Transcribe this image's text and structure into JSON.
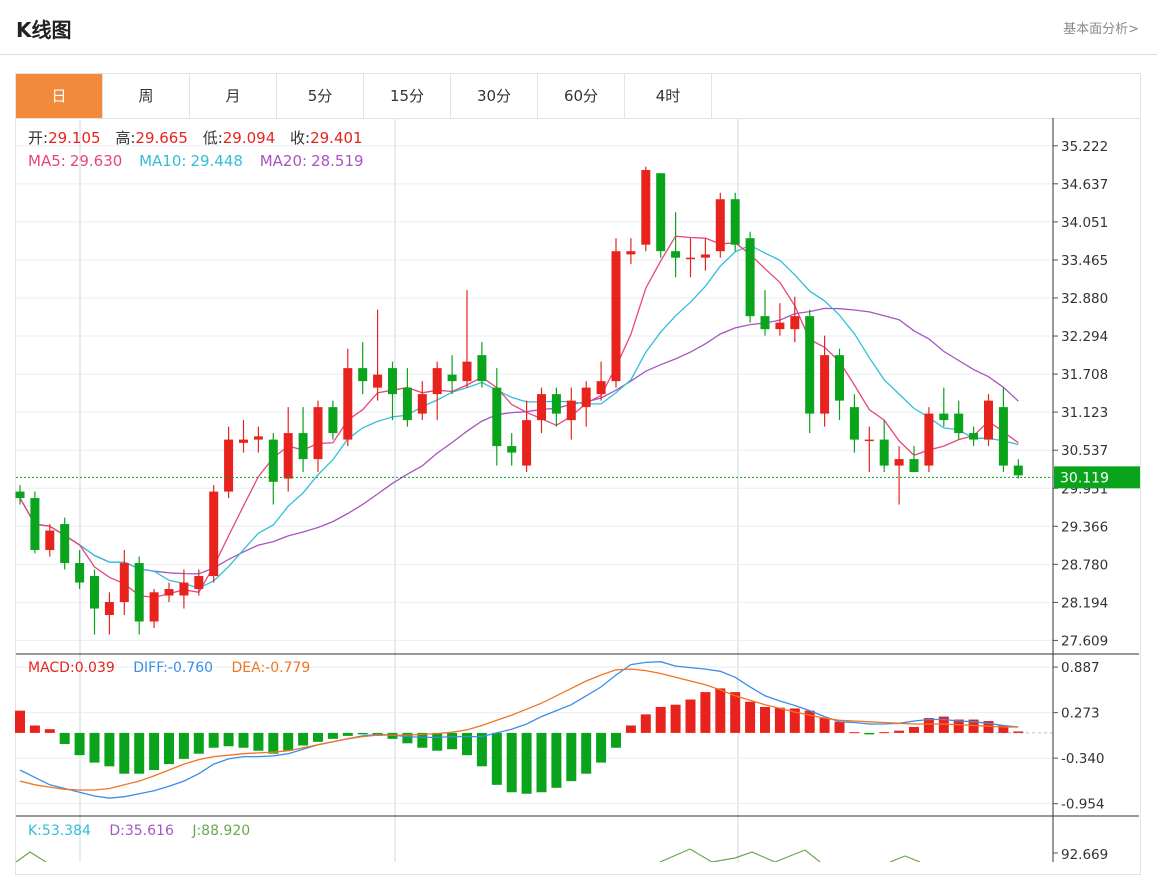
{
  "header": {
    "title": "K线图",
    "link": "基本面分析>"
  },
  "tabs": [
    {
      "label": "日",
      "active": true
    },
    {
      "label": "周",
      "active": false
    },
    {
      "label": "月",
      "active": false
    },
    {
      "label": "5分",
      "active": false
    },
    {
      "label": "15分",
      "active": false
    },
    {
      "label": "30分",
      "active": false
    },
    {
      "label": "60分",
      "active": false
    },
    {
      "label": "4时",
      "active": false
    }
  ],
  "colors": {
    "up": "#e8231d",
    "down": "#0aa31c",
    "ma5": "#e8467a",
    "ma10": "#31bfd8",
    "ma20": "#a855c2",
    "diff": "#3a8ee6",
    "dea": "#f07522",
    "accent": "#f28a3b"
  },
  "chart_data": [
    {
      "type": "candlestick",
      "ohlc_info": {
        "open_label": "开:",
        "open": "29.105",
        "high_label": "高:",
        "high": "29.665",
        "low_label": "低:",
        "low": "29.094",
        "close_label": "收:",
        "close": "29.401"
      },
      "ma_info": {
        "ma5_label": "MA5:",
        "ma5": "29.630",
        "ma10_label": "MA10:",
        "ma10": "29.448",
        "ma20_label": "MA20:",
        "ma20": "28.519"
      },
      "y_ticks": [
        "35.222",
        "34.637",
        "34.051",
        "33.465",
        "32.880",
        "32.294",
        "31.708",
        "31.123",
        "30.537",
        "29.951",
        "29.366",
        "28.780",
        "28.194",
        "27.609"
      ],
      "ylim": [
        27.4,
        35.65
      ],
      "current_price": "30.119",
      "candles": [
        [
          29.9,
          29.8,
          30.0,
          29.7
        ],
        [
          29.8,
          29.0,
          29.9,
          28.95
        ],
        [
          29.0,
          29.3,
          29.4,
          28.9
        ],
        [
          29.4,
          28.8,
          29.5,
          28.7
        ],
        [
          28.8,
          28.5,
          29.0,
          28.4
        ],
        [
          28.6,
          28.1,
          28.7,
          27.7
        ],
        [
          28.0,
          28.2,
          28.35,
          27.7
        ],
        [
          28.2,
          28.8,
          29.0,
          28.0
        ],
        [
          28.8,
          27.9,
          28.9,
          27.7
        ],
        [
          27.9,
          28.35,
          28.4,
          27.8
        ],
        [
          28.3,
          28.4,
          28.5,
          28.2
        ],
        [
          28.3,
          28.5,
          28.7,
          28.1
        ],
        [
          28.4,
          28.6,
          28.7,
          28.3
        ],
        [
          28.6,
          29.9,
          30.0,
          28.5
        ],
        [
          29.9,
          30.7,
          30.9,
          29.8
        ],
        [
          30.65,
          30.7,
          31.0,
          30.5
        ],
        [
          30.7,
          30.75,
          30.9,
          30.5
        ],
        [
          30.7,
          30.05,
          30.8,
          29.7
        ],
        [
          30.1,
          30.8,
          31.2,
          29.9
        ],
        [
          30.8,
          30.4,
          31.2,
          30.2
        ],
        [
          30.4,
          31.2,
          31.3,
          30.2
        ],
        [
          31.2,
          30.8,
          31.3,
          30.7
        ],
        [
          30.7,
          31.8,
          32.1,
          30.6
        ],
        [
          31.8,
          31.6,
          32.2,
          31.4
        ],
        [
          31.5,
          31.7,
          32.7,
          31.3
        ],
        [
          31.8,
          31.4,
          31.9,
          31.0
        ],
        [
          31.5,
          31.0,
          31.8,
          30.9
        ],
        [
          31.1,
          31.4,
          31.6,
          31.0
        ],
        [
          31.4,
          31.8,
          31.9,
          31.0
        ],
        [
          31.7,
          31.6,
          32.0,
          31.4
        ],
        [
          31.6,
          31.9,
          33.0,
          31.5
        ],
        [
          32.0,
          31.6,
          32.2,
          31.5
        ],
        [
          31.5,
          30.6,
          31.8,
          30.3
        ],
        [
          30.6,
          30.5,
          30.8,
          30.3
        ],
        [
          30.3,
          31.0,
          31.3,
          30.2
        ],
        [
          31.0,
          31.4,
          31.5,
          30.8
        ],
        [
          31.4,
          31.1,
          31.5,
          30.9
        ],
        [
          31.0,
          31.3,
          31.5,
          30.7
        ],
        [
          31.2,
          31.5,
          31.6,
          30.9
        ],
        [
          31.4,
          31.6,
          31.9,
          31.3
        ],
        [
          31.6,
          33.6,
          33.8,
          31.5
        ],
        [
          33.55,
          33.6,
          33.8,
          33.4
        ],
        [
          33.7,
          34.85,
          34.9,
          33.6
        ],
        [
          34.8,
          33.6,
          34.8,
          33.5
        ],
        [
          33.6,
          33.5,
          34.2,
          33.2
        ],
        [
          33.5,
          33.5,
          33.8,
          33.2
        ],
        [
          33.5,
          33.55,
          33.8,
          33.3
        ],
        [
          33.6,
          34.4,
          34.5,
          33.5
        ],
        [
          34.4,
          33.7,
          34.5,
          33.6
        ],
        [
          33.8,
          32.6,
          33.9,
          32.5
        ],
        [
          32.6,
          32.4,
          33.0,
          32.3
        ],
        [
          32.4,
          32.5,
          32.8,
          32.3
        ],
        [
          32.4,
          32.6,
          32.9,
          32.2
        ],
        [
          32.6,
          31.1,
          32.7,
          30.8
        ],
        [
          31.1,
          32.0,
          32.3,
          30.9
        ],
        [
          32.0,
          31.3,
          32.1,
          31.0
        ],
        [
          31.2,
          30.7,
          31.4,
          30.5
        ],
        [
          30.7,
          30.7,
          30.9,
          30.2
        ],
        [
          30.7,
          30.3,
          31.0,
          30.2
        ],
        [
          30.3,
          30.4,
          30.6,
          29.7
        ],
        [
          30.4,
          30.2,
          30.6,
          30.2
        ],
        [
          30.3,
          31.1,
          31.2,
          30.2
        ],
        [
          31.1,
          31.0,
          31.5,
          30.9
        ],
        [
          31.1,
          30.8,
          31.3,
          30.7
        ],
        [
          30.8,
          30.7,
          30.9,
          30.6
        ],
        [
          30.7,
          31.3,
          31.4,
          30.6
        ],
        [
          31.2,
          30.3,
          31.5,
          30.2
        ],
        [
          30.3,
          30.15,
          30.4,
          30.1
        ]
      ]
    },
    {
      "type": "bar",
      "info": {
        "macd_label": "MACD:",
        "macd": "0.039",
        "diff_label": "DIFF:",
        "diff": "-0.760",
        "dea_label": "DEA:",
        "dea": "-0.779"
      },
      "y_ticks": [
        "0.887",
        "0.273",
        "-0.340",
        "-0.954"
      ],
      "ylim": [
        -1.12,
        1.05
      ],
      "macd": [
        0.3,
        0.1,
        0.05,
        -0.15,
        -0.3,
        -0.4,
        -0.45,
        -0.55,
        -0.55,
        -0.5,
        -0.42,
        -0.35,
        -0.28,
        -0.2,
        -0.18,
        -0.2,
        -0.24,
        -0.28,
        -0.24,
        -0.17,
        -0.12,
        -0.08,
        -0.04,
        -0.02,
        -0.04,
        -0.08,
        -0.14,
        -0.2,
        -0.24,
        -0.22,
        -0.3,
        -0.45,
        -0.7,
        -0.8,
        -0.82,
        -0.8,
        -0.74,
        -0.65,
        -0.55,
        -0.4,
        -0.2,
        0.1,
        0.25,
        0.35,
        0.38,
        0.45,
        0.55,
        0.6,
        0.55,
        0.42,
        0.35,
        0.34,
        0.33,
        0.3,
        0.2,
        0.15,
        0.01,
        -0.02,
        0.01,
        0.03,
        0.08,
        0.2,
        0.22,
        0.18,
        0.18,
        0.16,
        0.1,
        0.02
      ],
      "diff": [
        -0.5,
        -0.6,
        -0.7,
        -0.75,
        -0.8,
        -0.85,
        -0.88,
        -0.86,
        -0.82,
        -0.78,
        -0.72,
        -0.65,
        -0.55,
        -0.42,
        -0.35,
        -0.32,
        -0.32,
        -0.31,
        -0.28,
        -0.22,
        -0.16,
        -0.12,
        -0.08,
        -0.04,
        -0.02,
        -0.03,
        -0.05,
        -0.06,
        -0.06,
        -0.05,
        -0.05,
        -0.05,
        0.0,
        0.05,
        0.12,
        0.22,
        0.3,
        0.38,
        0.5,
        0.62,
        0.78,
        0.92,
        0.95,
        0.96,
        0.9,
        0.88,
        0.86,
        0.83,
        0.75,
        0.62,
        0.5,
        0.43,
        0.37,
        0.3,
        0.22,
        0.15,
        0.14,
        0.12,
        0.12,
        0.13,
        0.16,
        0.18,
        0.18,
        0.16,
        0.15,
        0.13,
        0.1,
        0.08
      ],
      "dea": [
        -0.65,
        -0.7,
        -0.73,
        -0.76,
        -0.77,
        -0.77,
        -0.75,
        -0.7,
        -0.65,
        -0.58,
        -0.5,
        -0.42,
        -0.36,
        -0.32,
        -0.3,
        -0.28,
        -0.27,
        -0.26,
        -0.24,
        -0.2,
        -0.16,
        -0.12,
        -0.08,
        -0.05,
        -0.03,
        -0.03,
        -0.03,
        -0.02,
        -0.01,
        0.01,
        0.04,
        0.1,
        0.17,
        0.24,
        0.32,
        0.4,
        0.5,
        0.6,
        0.7,
        0.78,
        0.85,
        0.86,
        0.84,
        0.8,
        0.75,
        0.7,
        0.65,
        0.58,
        0.5,
        0.44,
        0.38,
        0.33,
        0.28,
        0.24,
        0.2,
        0.17,
        0.16,
        0.15,
        0.14,
        0.13,
        0.12,
        0.12,
        0.12,
        0.11,
        0.1,
        0.09,
        0.08,
        0.08
      ]
    },
    {
      "type": "line",
      "info": {
        "k_label": "K:",
        "k": "53.384",
        "d_label": "D:",
        "d": "35.616",
        "j_label": "J:",
        "j": "88.920"
      },
      "y_ticks": [
        "92.669"
      ]
    }
  ]
}
